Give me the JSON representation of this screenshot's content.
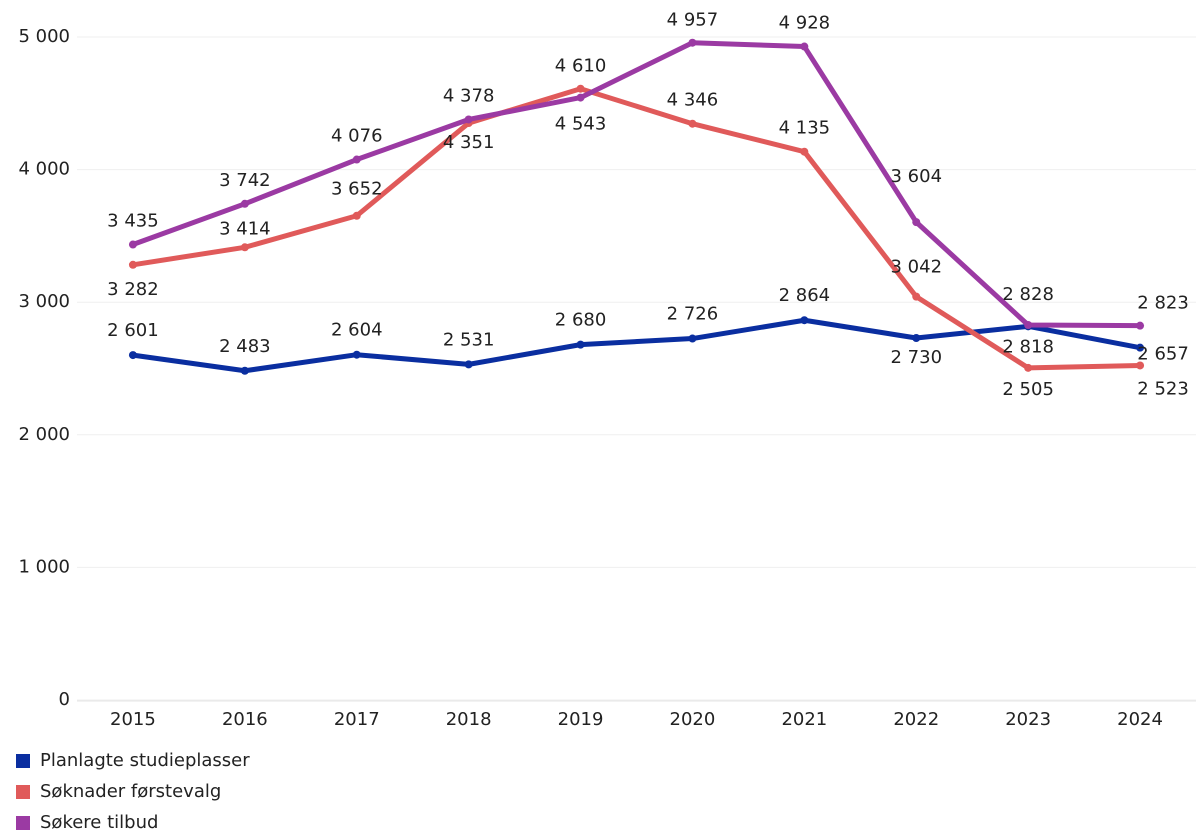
{
  "chart_data": {
    "type": "line",
    "categories": [
      "2015",
      "2016",
      "2017",
      "2018",
      "2019",
      "2020",
      "2021",
      "2022",
      "2023",
      "2024"
    ],
    "series": [
      {
        "name": "Planlagte studieplasser",
        "color": "#0a2ea0",
        "values": [
          2601,
          2483,
          2604,
          2531,
          2680,
          2726,
          2864,
          2730,
          2818,
          2657
        ],
        "value_labels": [
          "2 601",
          "2 483",
          "2 604",
          "2 531",
          "2 680",
          "2 726",
          "2 864",
          "2 730",
          "2 818",
          "2 657"
        ]
      },
      {
        "name": "Søknader førstevalg",
        "color": "#e05a5a",
        "values": [
          3282,
          3414,
          3652,
          4351,
          4610,
          4346,
          4135,
          3042,
          2505,
          2523
        ],
        "value_labels": [
          "3 282",
          "3 414",
          "3 652",
          "4 351",
          "4 610",
          "4 346",
          "4 135",
          "3 042",
          "2 505",
          "2 523"
        ]
      },
      {
        "name": "Søkere tilbud",
        "color": "#9b3aa3",
        "values": [
          3435,
          3742,
          4076,
          4378,
          4543,
          4957,
          4928,
          3604,
          2828,
          2823
        ],
        "value_labels": [
          "3 435",
          "3 742",
          "4 076",
          "4 378",
          "4 543",
          "4 957",
          "4 928",
          "3 604",
          "2 828",
          "2 823"
        ]
      }
    ],
    "ylim": [
      0,
      5000
    ],
    "yticks": [
      0,
      {
        "value": 1000,
        "label": "1 000"
      },
      {
        "value": 2000,
        "label": "2 000"
      },
      {
        "value": 3000,
        "label": "3 000"
      },
      {
        "value": 4000,
        "label": "4 000"
      },
      {
        "value": 5000,
        "label": "5 000"
      }
    ],
    "grid": true,
    "legend": "bottom-left"
  }
}
